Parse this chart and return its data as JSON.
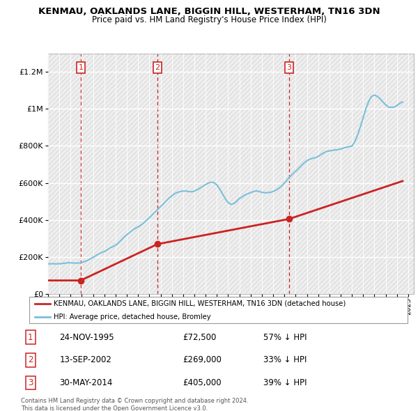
{
  "title": "KENMAU, OAKLANDS LANE, BIGGIN HILL, WESTERHAM, TN16 3DN",
  "subtitle": "Price paid vs. HM Land Registry's House Price Index (HPI)",
  "ylim": [
    0,
    1300000
  ],
  "xlim_start": 1993,
  "xlim_end": 2025.5,
  "hpi_color": "#7bbfdb",
  "price_color": "#cc2222",
  "transactions": [
    {
      "num": 1,
      "date": 1995.9,
      "price": 72500,
      "date_str": "24-NOV-1995",
      "price_str": "£72,500",
      "pct": "57% ↓ HPI"
    },
    {
      "num": 2,
      "date": 2002.72,
      "price": 269000,
      "date_str": "13-SEP-2002",
      "price_str": "£269,000",
      "pct": "33% ↓ HPI"
    },
    {
      "num": 3,
      "date": 2014.41,
      "price": 405000,
      "date_str": "30-MAY-2014",
      "price_str": "£405,000",
      "pct": "39% ↓ HPI"
    }
  ],
  "legend_line1": "KENMAU, OAKLANDS LANE, BIGGIN HILL, WESTERHAM, TN16 3DN (detached house)",
  "legend_line2": "HPI: Average price, detached house, Bromley",
  "footnote": "Contains HM Land Registry data © Crown copyright and database right 2024.\nThis data is licensed under the Open Government Licence v3.0.",
  "hpi_data_x": [
    1993.0,
    1993.25,
    1993.5,
    1993.75,
    1994.0,
    1994.25,
    1994.5,
    1994.75,
    1995.0,
    1995.25,
    1995.5,
    1995.75,
    1996.0,
    1996.25,
    1996.5,
    1996.75,
    1997.0,
    1997.25,
    1997.5,
    1997.75,
    1998.0,
    1998.25,
    1998.5,
    1998.75,
    1999.0,
    1999.25,
    1999.5,
    1999.75,
    2000.0,
    2000.25,
    2000.5,
    2000.75,
    2001.0,
    2001.25,
    2001.5,
    2001.75,
    2002.0,
    2002.25,
    2002.5,
    2002.75,
    2003.0,
    2003.25,
    2003.5,
    2003.75,
    2004.0,
    2004.25,
    2004.5,
    2004.75,
    2005.0,
    2005.25,
    2005.5,
    2005.75,
    2006.0,
    2006.25,
    2006.5,
    2006.75,
    2007.0,
    2007.25,
    2007.5,
    2007.75,
    2008.0,
    2008.25,
    2008.5,
    2008.75,
    2009.0,
    2009.25,
    2009.5,
    2009.75,
    2010.0,
    2010.25,
    2010.5,
    2010.75,
    2011.0,
    2011.25,
    2011.5,
    2011.75,
    2012.0,
    2012.25,
    2012.5,
    2012.75,
    2013.0,
    2013.25,
    2013.5,
    2013.75,
    2014.0,
    2014.25,
    2014.5,
    2014.75,
    2015.0,
    2015.25,
    2015.5,
    2015.75,
    2016.0,
    2016.25,
    2016.5,
    2016.75,
    2017.0,
    2017.25,
    2017.5,
    2017.75,
    2018.0,
    2018.25,
    2018.5,
    2018.75,
    2019.0,
    2019.25,
    2019.5,
    2019.75,
    2020.0,
    2020.25,
    2020.5,
    2020.75,
    2021.0,
    2021.25,
    2021.5,
    2021.75,
    2022.0,
    2022.25,
    2022.5,
    2022.75,
    2023.0,
    2023.25,
    2023.5,
    2023.75,
    2024.0,
    2024.25,
    2024.5
  ],
  "hpi_data_y": [
    162000,
    163000,
    163000,
    162000,
    163000,
    164000,
    166000,
    168000,
    168000,
    167000,
    166000,
    167000,
    170000,
    175000,
    181000,
    189000,
    197000,
    207000,
    216000,
    223000,
    229000,
    238000,
    248000,
    255000,
    263000,
    276000,
    291000,
    307000,
    320000,
    332000,
    344000,
    354000,
    362000,
    372000,
    384000,
    398000,
    412000,
    427000,
    442000,
    457000,
    472000,
    487000,
    503000,
    518000,
    530000,
    542000,
    549000,
    553000,
    556000,
    556000,
    553000,
    552000,
    556000,
    563000,
    572000,
    582000,
    591000,
    599000,
    604000,
    601000,
    589000,
    567000,
    541000,
    514000,
    494000,
    484000,
    488000,
    500000,
    515000,
    525000,
    535000,
    541000,
    547000,
    554000,
    557000,
    554000,
    549000,
    547000,
    547000,
    549000,
    554000,
    561000,
    571000,
    584000,
    599000,
    617000,
    634000,
    649000,
    663000,
    678000,
    693000,
    708000,
    720000,
    728000,
    733000,
    736000,
    743000,
    753000,
    763000,
    770000,
    773000,
    776000,
    778000,
    780000,
    783000,
    789000,
    793000,
    796000,
    799000,
    822000,
    858000,
    903000,
    953000,
    1003000,
    1042000,
    1068000,
    1075000,
    1068000,
    1055000,
    1038000,
    1022000,
    1010000,
    1008000,
    1010000,
    1018000,
    1030000,
    1038000
  ],
  "price_data_x": [
    1993.0,
    1995.9,
    2002.72,
    2014.41,
    2024.5
  ],
  "price_data_y": [
    72500,
    72500,
    269000,
    405000,
    610000
  ]
}
